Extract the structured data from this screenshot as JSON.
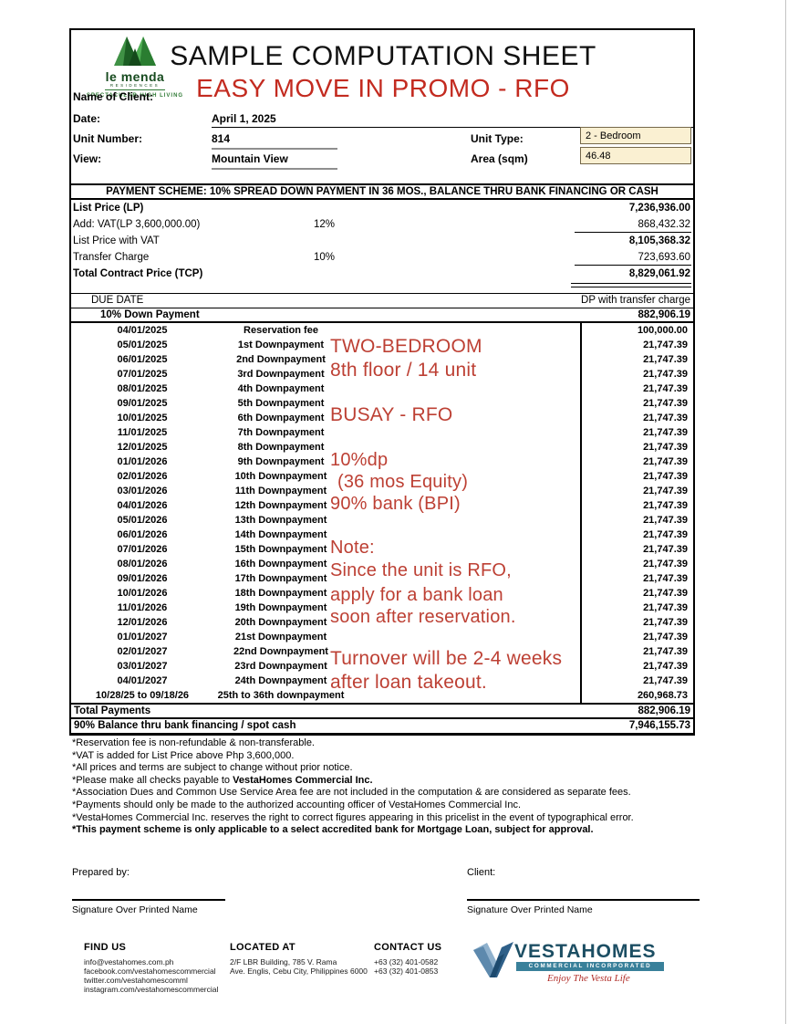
{
  "header": {
    "logo": {
      "name": "le menda",
      "sub": "RESIDENCES",
      "tagline": "SPECTACULAR HIGH LIVING"
    },
    "title": "SAMPLE COMPUTATION SHEET",
    "subtitle": "EASY MOVE IN PROMO - RFO",
    "client_label": "Name of Client:",
    "date_label": "Date:",
    "date_value": "April 1, 2025",
    "unit_number_label": "Unit Number:",
    "unit_number_value": "814",
    "unit_type_label": "Unit Type:",
    "unit_type_value": "2 - Bedroom",
    "view_label": "View:",
    "view_value": "Mountain View",
    "area_label": "Area (sqm)",
    "area_value": "46.48"
  },
  "scheme": {
    "header": "PAYMENT SCHEME: 10% SPREAD DOWN PAYMENT IN 36 MOS., BALANCE THRU BANK FINANCING OR CASH",
    "rows": [
      {
        "label": "List Price (LP)",
        "pct": "",
        "value": "7,236,936.00"
      },
      {
        "label": "Add: VAT(LP 3,600,000.00)",
        "pct": "12%",
        "value": "868,432.32"
      },
      {
        "label": "List Price with VAT",
        "pct": "",
        "value": "8,105,368.32"
      },
      {
        "label": "Transfer Charge",
        "pct": "10%",
        "value": "723,693.60"
      },
      {
        "label": "Total Contract Price (TCP)",
        "pct": "",
        "value": "8,829,061.92"
      }
    ]
  },
  "due": {
    "due_date_label": "DUE DATE",
    "dp_header": "DP with transfer charge",
    "dp_label": "10% Down Payment",
    "dp_value": "882,906.19",
    "schedule": [
      {
        "date": "04/01/2025",
        "label": "Reservation fee",
        "amount": "100,000.00"
      },
      {
        "date": "05/01/2025",
        "label": "1st Downpayment",
        "amount": "21,747.39"
      },
      {
        "date": "06/01/2025",
        "label": "2nd Downpayment",
        "amount": "21,747.39"
      },
      {
        "date": "07/01/2025",
        "label": "3rd Downpayment",
        "amount": "21,747.39"
      },
      {
        "date": "08/01/2025",
        "label": "4th Downpayment",
        "amount": "21,747.39"
      },
      {
        "date": "09/01/2025",
        "label": "5th Downpayment",
        "amount": "21,747.39"
      },
      {
        "date": "10/01/2025",
        "label": "6th Downpayment",
        "amount": "21,747.39"
      },
      {
        "date": "11/01/2025",
        "label": "7th Downpayment",
        "amount": "21,747.39"
      },
      {
        "date": "12/01/2025",
        "label": "8th Downpayment",
        "amount": "21,747.39"
      },
      {
        "date": "01/01/2026",
        "label": "9th Downpayment",
        "amount": "21,747.39"
      },
      {
        "date": "02/01/2026",
        "label": "10th Downpayment",
        "amount": "21,747.39"
      },
      {
        "date": "03/01/2026",
        "label": "11th Downpayment",
        "amount": "21,747.39"
      },
      {
        "date": "04/01/2026",
        "label": "12th Downpayment",
        "amount": "21,747.39"
      },
      {
        "date": "05/01/2026",
        "label": "13th Downpayment",
        "amount": "21,747.39"
      },
      {
        "date": "06/01/2026",
        "label": "14th Downpayment",
        "amount": "21,747.39"
      },
      {
        "date": "07/01/2026",
        "label": "15th Downpayment",
        "amount": "21,747.39"
      },
      {
        "date": "08/01/2026",
        "label": "16th Downpayment",
        "amount": "21,747.39"
      },
      {
        "date": "09/01/2026",
        "label": "17th Downpayment",
        "amount": "21,747.39"
      },
      {
        "date": "10/01/2026",
        "label": "18th Downpayment",
        "amount": "21,747.39"
      },
      {
        "date": "11/01/2026",
        "label": "19th Downpayment",
        "amount": "21,747.39"
      },
      {
        "date": "12/01/2026",
        "label": "20th Downpayment",
        "amount": "21,747.39"
      },
      {
        "date": "01/01/2027",
        "label": "21st Downpayment",
        "amount": "21,747.39"
      },
      {
        "date": "02/01/2027",
        "label": "22nd Downpayment",
        "amount": "21,747.39"
      },
      {
        "date": "03/01/2027",
        "label": "23rd Downpayment",
        "amount": "21,747.39"
      },
      {
        "date": "04/01/2027",
        "label": "24th Downpayment",
        "amount": "21,747.39"
      },
      {
        "date": "10/28/25 to 09/18/26",
        "label": "25th to 36th downpayment",
        "amount": "260,968.73"
      }
    ],
    "total_label": "Total Payments",
    "total_value": "882,906.19",
    "balance_label": "90% Balance thru bank financing / spot cash",
    "balance_value": "7,946,155.73"
  },
  "annotations": [
    "TWO-BEDROOM",
    "8th floor / 14 unit",
    "BUSAY - RFO",
    "10%dp",
    "(36 mos Equity)",
    "90% bank (BPI)",
    "Note:",
    "Since the unit is RFO,",
    "apply for a bank loan",
    "soon after reservation.",
    "Turnover will be 2-4 weeks",
    "after loan takeout."
  ],
  "notes": [
    {
      "pre": "*Reservation fee is non-refundable & non-transferable.",
      "bold": ""
    },
    {
      "pre": "*VAT is added for List Price above Php 3,600,000.",
      "bold": ""
    },
    {
      "pre": "*All prices and terms are subject to change without prior notice.",
      "bold": ""
    },
    {
      "pre": "*Please make all checks payable to ",
      "bold": "VestaHomes Commercial Inc."
    },
    {
      "pre": "*Association Dues and Common Use Service Area fee are not included in the computation & are considered as separate fees.",
      "bold": ""
    },
    {
      "pre": "*Payments should only be made to the authorized accounting officer of VestaHomes Commercial Inc.",
      "bold": ""
    },
    {
      "pre": "*VestaHomes Commercial Inc. reserves the right to correct figures appearing in this pricelist in the event of typographical error.",
      "bold": ""
    },
    {
      "pre": "",
      "bold": "*This payment scheme is only applicable to a select accredited bank for Mortgage Loan, subject for approval."
    }
  ],
  "signatures": {
    "prepared_label": "Prepared by:",
    "client_label": "Client:",
    "caption": "Signature Over Printed Name"
  },
  "footer": {
    "find_us": {
      "title": "FIND US",
      "lines": [
        "info@vestahomes.com.ph",
        "facebook.com/vestahomescommercial",
        "twitter.com/vestahomescomml",
        "instagram.com/vestahomescommercial"
      ]
    },
    "located_at": {
      "title": "LOCATED AT",
      "lines": [
        "2/F LBR Building, 785 V. Rama",
        "Ave. Englis, Cebu City, Philippines 6000"
      ]
    },
    "contact_us": {
      "title": "CONTACT US",
      "lines": [
        "+63 (32) 401-0582",
        "+63 (32) 401-0853"
      ]
    },
    "brand": {
      "name": "VESTAHOMES",
      "sub": "COMMERCIAL INCORPORATED",
      "tagline": "Enjoy The Vesta Life"
    }
  },
  "colors": {
    "accent_red": "#c32b20",
    "annotation_red": "#bd4034",
    "highlight_cell": "#faf0d2",
    "brand_teal": "#39809a",
    "brand_dark_teal": "#1c4e63",
    "logo_green": "#2f7a35",
    "tagline_red": "#b02c26"
  }
}
